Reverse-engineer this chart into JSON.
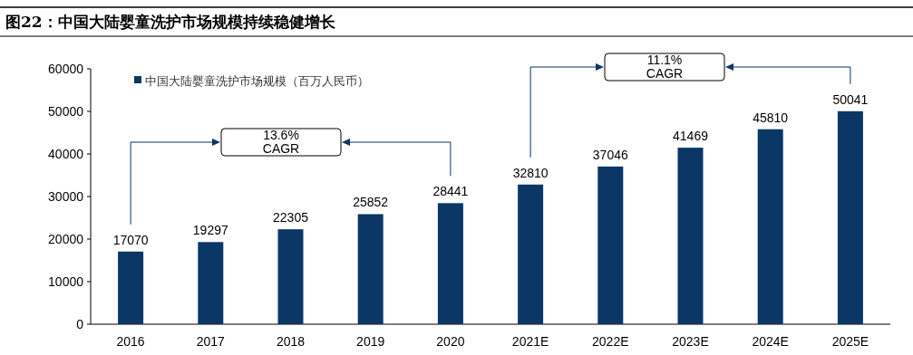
{
  "chart_data": {
    "type": "bar",
    "title": "图22：中国大陆婴童洗护市场规模持续稳健增长",
    "categories": [
      "2016",
      "2017",
      "2018",
      "2019",
      "2020",
      "2021E",
      "2022E",
      "2023E",
      "2024E",
      "2025E"
    ],
    "series": [
      {
        "name": "中国大陆婴童洗护市场规模（百万人民币）",
        "color": "#0b3766",
        "values": [
          17070,
          19297,
          22305,
          25852,
          28441,
          32810,
          37046,
          41469,
          45810,
          50041
        ]
      }
    ],
    "data_labels": true,
    "ylim": [
      0,
      60000
    ],
    "yticks": [
      0,
      10000,
      20000,
      30000,
      40000,
      50000,
      60000
    ],
    "grid": false,
    "legend": "top left",
    "annotations": [
      "13.6%\nCAGR",
      "11.1%\nCAGR"
    ]
  }
}
